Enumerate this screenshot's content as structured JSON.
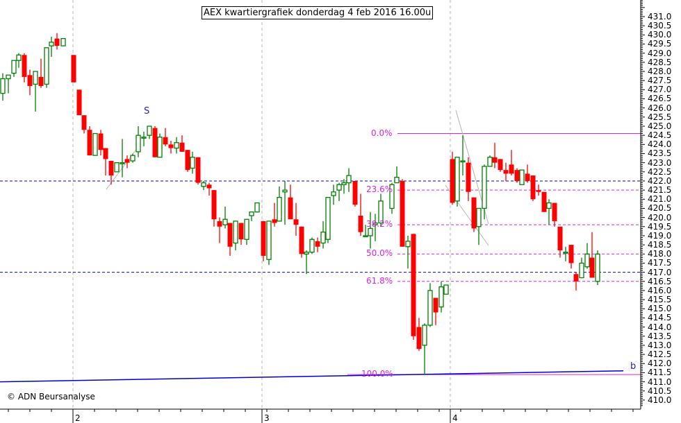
{
  "title": "AEX kwartiergrafiek donderdag 4 feb 2016 16.00u",
  "copyright": "© ADN Beursanalyse",
  "colors": {
    "up": "#008000",
    "down": "#ff0000",
    "support_resistance": "#0000c8",
    "fibonacci": "#e020e0",
    "trendline": "#0000c8",
    "helper_lines": "#b4b4b4",
    "grid_vertical": "#b4b4b4",
    "annotation": "#2020c0"
  },
  "annotations": {
    "s_label": "S",
    "b_label": "b"
  },
  "chart_data": {
    "type": "candlestick",
    "title": "AEX kwartiergrafiek donderdag 4 feb 2016 16.00u",
    "xlabel": "",
    "ylabel": "",
    "ylim": [
      409.7,
      432.0
    ],
    "y_ticks": [
      "431.0",
      "430.5",
      "430.0",
      "429.5",
      "429.0",
      "428.5",
      "428.0",
      "427.5",
      "427.0",
      "426.5",
      "426.0",
      "425.5",
      "425.0",
      "424.5",
      "424.0",
      "423.5",
      "423.0",
      "422.5",
      "422.0",
      "421.5",
      "421.0",
      "420.5",
      "420.0",
      "419.5",
      "419.0",
      "418.5",
      "418.0",
      "417.5",
      "417.0",
      "416.5",
      "416.0",
      "415.5",
      "415.0",
      "414.5",
      "414.0",
      "413.5",
      "413.0",
      "412.5",
      "412.0",
      "411.5",
      "411.0",
      "410.5",
      "410.0"
    ],
    "x_ticks": [
      {
        "label": "2",
        "x": 105
      },
      {
        "label": "3",
        "x": 377
      },
      {
        "label": "4",
        "x": 648
      }
    ],
    "grid": "vertical day separators",
    "horizontal_levels": [
      {
        "value": 422.0,
        "style": "dashed",
        "color": "#0000c8"
      },
      {
        "value": 417.0,
        "style": "dashed",
        "color": "#0000c8"
      }
    ],
    "fibonacci": [
      {
        "label": "0.0%",
        "value": 424.6,
        "style": "solid"
      },
      {
        "label": "23.6%",
        "value": 421.5,
        "style": "dashed"
      },
      {
        "label": "38.2%",
        "value": 419.6,
        "style": "dashed"
      },
      {
        "label": "50.0%",
        "value": 418.0,
        "style": "dashed"
      },
      {
        "label": "61.8%",
        "value": 416.5,
        "style": "dashed"
      },
      {
        "label": "100.0%",
        "value": 411.4,
        "style": "solid"
      }
    ],
    "trendline": {
      "from": [
        0,
        411.0
      ],
      "to": [
        897,
        411.6
      ]
    },
    "candles": [
      {
        "x": 4,
        "o": 426.8,
        "c": 427.6,
        "h": 427.9,
        "l": 426.4
      },
      {
        "x": 12,
        "o": 427.6,
        "c": 427.8,
        "h": 427.8,
        "l": 426.8
      },
      {
        "x": 20,
        "o": 427.9,
        "c": 428.6,
        "h": 428.6,
        "l": 427.7
      },
      {
        "x": 27,
        "o": 428.6,
        "c": 428.9,
        "h": 429.0,
        "l": 428.2
      },
      {
        "x": 35,
        "o": 428.9,
        "c": 427.7,
        "h": 429.0,
        "l": 427.4
      },
      {
        "x": 43,
        "o": 427.8,
        "c": 427.2,
        "h": 428.1,
        "l": 426.7
      },
      {
        "x": 51,
        "o": 427.3,
        "c": 428.0,
        "h": 428.0,
        "l": 425.8
      },
      {
        "x": 59,
        "o": 427.7,
        "c": 427.2,
        "h": 428.7,
        "l": 427.1
      },
      {
        "x": 67,
        "o": 427.3,
        "c": 429.3,
        "h": 429.3,
        "l": 427.1
      },
      {
        "x": 74,
        "o": 429.4,
        "c": 429.6,
        "h": 429.9,
        "l": 428.8
      },
      {
        "x": 82,
        "o": 429.8,
        "c": 429.4,
        "h": 430.1,
        "l": 429.2
      },
      {
        "x": 91,
        "o": 429.4,
        "c": 429.8,
        "h": 429.8,
        "l": 429.4
      },
      {
        "x": 106,
        "o": 428.9,
        "c": 427.4,
        "h": 428.9,
        "l": 427.4
      },
      {
        "x": 114,
        "o": 427.0,
        "c": 425.6,
        "h": 427.0,
        "l": 425.6
      },
      {
        "x": 121,
        "o": 425.6,
        "c": 424.8,
        "h": 425.6,
        "l": 424.6
      },
      {
        "x": 129,
        "o": 424.8,
        "c": 423.4,
        "h": 425.0,
        "l": 423.4
      },
      {
        "x": 137,
        "o": 423.4,
        "c": 424.6,
        "h": 424.6,
        "l": 423.4
      },
      {
        "x": 145,
        "o": 424.6,
        "c": 423.7,
        "h": 424.8,
        "l": 423.4
      },
      {
        "x": 152,
        "o": 423.8,
        "c": 423.2,
        "h": 423.8,
        "l": 422.3
      },
      {
        "x": 160,
        "o": 423.1,
        "c": 422.3,
        "h": 423.1,
        "l": 421.8
      },
      {
        "x": 168,
        "o": 422.5,
        "c": 423.0,
        "h": 423.0,
        "l": 422.5
      },
      {
        "x": 176,
        "o": 423.0,
        "c": 423.0,
        "h": 424.3,
        "l": 422.2
      },
      {
        "x": 183,
        "o": 423.2,
        "c": 423.0,
        "h": 423.4,
        "l": 422.7
      },
      {
        "x": 191,
        "o": 423.1,
        "c": 423.4,
        "h": 423.5,
        "l": 423.0
      },
      {
        "x": 199,
        "o": 423.6,
        "c": 424.5,
        "h": 425.0,
        "l": 423.3
      },
      {
        "x": 207,
        "o": 424.4,
        "c": 424.4,
        "h": 424.7,
        "l": 423.9
      },
      {
        "x": 215,
        "o": 424.5,
        "c": 425.0,
        "h": 425.0,
        "l": 424.3
      },
      {
        "x": 223,
        "o": 424.9,
        "c": 423.3,
        "h": 425.0,
        "l": 423.3
      },
      {
        "x": 230,
        "o": 423.3,
        "c": 424.4,
        "h": 424.6,
        "l": 423.3
      },
      {
        "x": 238,
        "o": 424.4,
        "c": 424.0,
        "h": 424.9,
        "l": 423.9
      },
      {
        "x": 246,
        "o": 424.0,
        "c": 423.8,
        "h": 424.2,
        "l": 423.5
      },
      {
        "x": 254,
        "o": 423.8,
        "c": 424.1,
        "h": 424.4,
        "l": 423.5
      },
      {
        "x": 262,
        "o": 424.1,
        "c": 423.6,
        "h": 424.5,
        "l": 423.6
      },
      {
        "x": 270,
        "o": 423.7,
        "c": 422.6,
        "h": 423.7,
        "l": 422.5
      },
      {
        "x": 277,
        "o": 422.7,
        "c": 423.3,
        "h": 423.6,
        "l": 422.4
      },
      {
        "x": 285,
        "o": 423.3,
        "c": 421.9,
        "h": 423.3,
        "l": 421.8
      },
      {
        "x": 293,
        "o": 421.7,
        "c": 421.9,
        "h": 422.0,
        "l": 421.5
      },
      {
        "x": 301,
        "o": 421.8,
        "c": 421.6,
        "h": 421.9,
        "l": 421.2
      },
      {
        "x": 308,
        "o": 421.5,
        "c": 419.9,
        "h": 421.5,
        "l": 419.5
      },
      {
        "x": 316,
        "o": 419.8,
        "c": 419.5,
        "h": 420.0,
        "l": 418.6
      },
      {
        "x": 324,
        "o": 419.6,
        "c": 419.9,
        "h": 420.6,
        "l": 419.4
      },
      {
        "x": 331,
        "o": 419.7,
        "c": 418.4,
        "h": 419.7,
        "l": 417.9
      },
      {
        "x": 339,
        "o": 418.6,
        "c": 419.8,
        "h": 419.8,
        "l": 418.2
      },
      {
        "x": 347,
        "o": 419.7,
        "c": 418.8,
        "h": 419.7,
        "l": 418.5
      },
      {
        "x": 355,
        "o": 418.8,
        "c": 419.9,
        "h": 419.9,
        "l": 418.5
      },
      {
        "x": 362,
        "o": 420.1,
        "c": 420.3,
        "h": 420.3,
        "l": 419.8
      },
      {
        "x": 370,
        "o": 420.3,
        "c": 420.8,
        "h": 420.8,
        "l": 420.3
      },
      {
        "x": 379,
        "o": 419.8,
        "c": 417.9,
        "h": 419.8,
        "l": 417.6
      },
      {
        "x": 387,
        "o": 417.7,
        "c": 419.8,
        "h": 419.8,
        "l": 417.4
      },
      {
        "x": 395,
        "o": 419.9,
        "c": 419.7,
        "h": 420.8,
        "l": 419.5
      },
      {
        "x": 402,
        "o": 419.8,
        "c": 421.1,
        "h": 421.7,
        "l": 419.8
      },
      {
        "x": 410,
        "o": 421.4,
        "c": 421.5,
        "h": 422.0,
        "l": 419.6
      },
      {
        "x": 418,
        "o": 421.1,
        "c": 419.9,
        "h": 421.8,
        "l": 419.9
      },
      {
        "x": 426,
        "o": 419.9,
        "c": 419.6,
        "h": 420.8,
        "l": 419.0
      },
      {
        "x": 434,
        "o": 419.5,
        "c": 418.0,
        "h": 419.5,
        "l": 417.8
      },
      {
        "x": 441,
        "o": 418.0,
        "c": 418.1,
        "h": 418.2,
        "l": 416.9
      },
      {
        "x": 449,
        "o": 418.1,
        "c": 418.8,
        "h": 418.9,
        "l": 418.0
      },
      {
        "x": 457,
        "o": 418.7,
        "c": 418.4,
        "h": 418.9,
        "l": 418.1
      },
      {
        "x": 465,
        "o": 418.6,
        "c": 419.2,
        "h": 419.8,
        "l": 418.3
      },
      {
        "x": 472,
        "o": 418.8,
        "c": 421.1,
        "h": 421.1,
        "l": 418.6
      },
      {
        "x": 480,
        "o": 421.2,
        "c": 421.4,
        "h": 421.8,
        "l": 420.7
      },
      {
        "x": 488,
        "o": 421.5,
        "c": 421.8,
        "h": 421.9,
        "l": 420.9
      },
      {
        "x": 495,
        "o": 421.8,
        "c": 421.9,
        "h": 422.1,
        "l": 421.3
      },
      {
        "x": 502,
        "o": 421.9,
        "c": 422.3,
        "h": 422.7,
        "l": 421.4
      },
      {
        "x": 511,
        "o": 422.0,
        "c": 420.7,
        "h": 422.0,
        "l": 420.6
      },
      {
        "x": 519,
        "o": 420.1,
        "c": 419.2,
        "h": 421.3,
        "l": 419.0
      },
      {
        "x": 526,
        "o": 419.0,
        "c": 419.0,
        "h": 419.6,
        "l": 419.0
      },
      {
        "x": 533,
        "o": 419.0,
        "c": 419.4,
        "h": 420.3,
        "l": 418.3
      },
      {
        "x": 540,
        "o": 419.6,
        "c": 419.7,
        "h": 420.2,
        "l": 418.7
      },
      {
        "x": 548,
        "o": 419.7,
        "c": 420.9,
        "h": 421.3,
        "l": 419.5
      },
      {
        "x": 564,
        "o": 420.5,
        "c": 421.8,
        "h": 421.9,
        "l": 420.2
      },
      {
        "x": 571,
        "o": 421.9,
        "c": 422.2,
        "h": 422.8,
        "l": 421.9
      },
      {
        "x": 579,
        "o": 422.0,
        "c": 418.4,
        "h": 422.1,
        "l": 418.4
      },
      {
        "x": 587,
        "o": 418.4,
        "c": 418.7,
        "h": 419.0,
        "l": 417.2
      },
      {
        "x": 595,
        "o": 419.1,
        "c": 413.5,
        "h": 419.1,
        "l": 413.3
      },
      {
        "x": 603,
        "o": 414.0,
        "c": 412.8,
        "h": 414.5,
        "l": 412.7
      },
      {
        "x": 611,
        "o": 413.0,
        "c": 414.1,
        "h": 414.2,
        "l": 411.4
      },
      {
        "x": 619,
        "o": 414.1,
        "c": 416.0,
        "h": 416.4,
        "l": 414.0
      },
      {
        "x": 627,
        "o": 415.6,
        "c": 414.8,
        "h": 415.6,
        "l": 414.1
      },
      {
        "x": 635,
        "o": 415.1,
        "c": 416.2,
        "h": 416.5,
        "l": 414.8
      },
      {
        "x": 642,
        "o": 415.8,
        "c": 416.3,
        "h": 416.3,
        "l": 415.8
      },
      {
        "x": 651,
        "o": 423.2,
        "c": 420.8,
        "h": 423.6,
        "l": 420.7
      },
      {
        "x": 658,
        "o": 420.9,
        "c": 423.3,
        "h": 423.3,
        "l": 420.6
      },
      {
        "x": 666,
        "o": 423.1,
        "c": 423.1,
        "h": 424.5,
        "l": 422.3
      },
      {
        "x": 674,
        "o": 423.0,
        "c": 421.4,
        "h": 423.3,
        "l": 420.9
      },
      {
        "x": 682,
        "o": 421.1,
        "c": 419.4,
        "h": 421.1,
        "l": 419.2
      },
      {
        "x": 689,
        "o": 419.5,
        "c": 420.5,
        "h": 420.5,
        "l": 418.5
      },
      {
        "x": 697,
        "o": 420.5,
        "c": 422.8,
        "h": 422.9,
        "l": 419.9
      },
      {
        "x": 705,
        "o": 422.8,
        "c": 423.3,
        "h": 423.4,
        "l": 422.8
      },
      {
        "x": 712,
        "o": 423.3,
        "c": 423.0,
        "h": 424.1,
        "l": 422.7
      },
      {
        "x": 720,
        "o": 423.2,
        "c": 422.6,
        "h": 423.2,
        "l": 422.5
      },
      {
        "x": 728,
        "o": 422.6,
        "c": 422.4,
        "h": 423.0,
        "l": 422.0
      },
      {
        "x": 736,
        "o": 422.9,
        "c": 422.4,
        "h": 423.7,
        "l": 422.3
      },
      {
        "x": 744,
        "o": 422.6,
        "c": 422.0,
        "h": 422.7,
        "l": 421.9
      },
      {
        "x": 751,
        "o": 421.8,
        "c": 422.6,
        "h": 422.6,
        "l": 421.8
      },
      {
        "x": 759,
        "o": 422.4,
        "c": 422.0,
        "h": 422.9,
        "l": 421.9
      },
      {
        "x": 767,
        "o": 422.3,
        "c": 421.0,
        "h": 422.3,
        "l": 420.9
      },
      {
        "x": 775,
        "o": 421.5,
        "c": 421.4,
        "h": 421.8,
        "l": 421.2
      },
      {
        "x": 783,
        "o": 421.4,
        "c": 420.3,
        "h": 421.4,
        "l": 420.3
      },
      {
        "x": 790,
        "o": 420.5,
        "c": 420.8,
        "h": 421.0,
        "l": 419.6
      },
      {
        "x": 798,
        "o": 420.8,
        "c": 419.8,
        "h": 420.8,
        "l": 419.5
      },
      {
        "x": 806,
        "o": 419.5,
        "c": 418.2,
        "h": 419.5,
        "l": 417.8
      },
      {
        "x": 814,
        "o": 418.1,
        "c": 418.1,
        "h": 418.4,
        "l": 417.6
      },
      {
        "x": 822,
        "o": 418.5,
        "c": 417.5,
        "h": 418.5,
        "l": 417.2
      },
      {
        "x": 829,
        "o": 416.9,
        "c": 416.5,
        "h": 417.0,
        "l": 416.0
      },
      {
        "x": 837,
        "o": 416.7,
        "c": 417.5,
        "h": 417.8,
        "l": 416.7
      },
      {
        "x": 845,
        "o": 417.3,
        "c": 418.0,
        "h": 418.6,
        "l": 417.2
      },
      {
        "x": 852,
        "o": 417.8,
        "c": 416.7,
        "h": 419.2,
        "l": 416.7
      },
      {
        "x": 860,
        "o": 416.5,
        "c": 418.0,
        "h": 418.2,
        "l": 416.3
      }
    ]
  }
}
